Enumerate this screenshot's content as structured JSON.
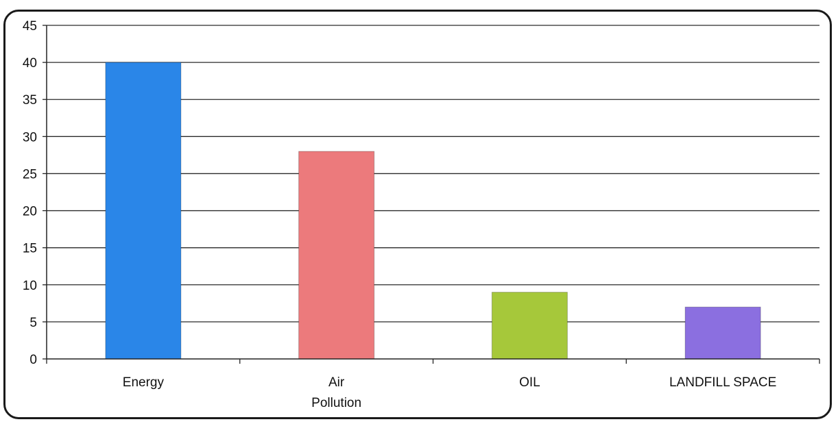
{
  "chart_data": {
    "type": "bar",
    "title": "",
    "xlabel": "",
    "ylabel": "",
    "categories": [
      "Energy",
      "Air Pollution",
      "OIL",
      "LANDFILL SPACE"
    ],
    "category_lines": [
      [
        "Energy"
      ],
      [
        "Air",
        "Pollution"
      ],
      [
        "OIL"
      ],
      [
        "LANDFILL SPACE"
      ]
    ],
    "values": [
      40,
      28,
      9,
      7
    ],
    "colors": [
      "#2a86e8",
      "#ec7a7c",
      "#a6c83a",
      "#8b6fe0"
    ],
    "ylim": [
      0,
      45
    ],
    "yticks": [
      0,
      5,
      10,
      15,
      20,
      25,
      30,
      35,
      40,
      45
    ],
    "grid": true,
    "legend": "none"
  }
}
